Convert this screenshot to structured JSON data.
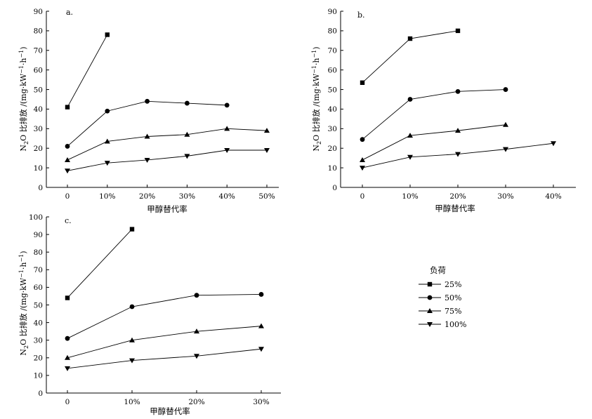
{
  "chart_data": [
    {
      "type": "line",
      "panel_label": "a.",
      "categories": [
        "0",
        "10%",
        "20%",
        "30%",
        "40%",
        "50%"
      ],
      "xlabel": "甲醇替代率",
      "ylabel": "N2O 比排放 /(mg·kW−1·h−1)",
      "ylim": [
        0,
        90
      ],
      "yticks": [
        "0",
        "10",
        "20",
        "30",
        "40",
        "50",
        "60",
        "70",
        "80",
        "90"
      ],
      "series": [
        {
          "name": "25%",
          "marker": "square",
          "values": [
            41,
            78,
            null,
            null,
            null,
            null
          ]
        },
        {
          "name": "50%",
          "marker": "circle",
          "values": [
            21,
            39,
            44,
            43,
            42,
            null
          ]
        },
        {
          "name": "75%",
          "marker": "triangle-up",
          "values": [
            14,
            23.5,
            26,
            27,
            30,
            29
          ]
        },
        {
          "name": "100%",
          "marker": "triangle-down",
          "values": [
            8.5,
            12.5,
            14,
            16,
            19,
            19
          ]
        }
      ]
    },
    {
      "type": "line",
      "panel_label": "b.",
      "categories": [
        "0",
        "10%",
        "20%",
        "30%",
        "40%"
      ],
      "xlabel": "甲醇替代率",
      "ylabel": "N2O 比排放 /(mg·kW−1·h−1)",
      "ylim": [
        0,
        90
      ],
      "yticks": [
        "0",
        "10",
        "20",
        "30",
        "40",
        "50",
        "60",
        "70",
        "80",
        "90"
      ],
      "series": [
        {
          "name": "25%",
          "marker": "square",
          "values": [
            53.5,
            76,
            80,
            null,
            null
          ]
        },
        {
          "name": "50%",
          "marker": "circle",
          "values": [
            24.5,
            45,
            49,
            50,
            null
          ]
        },
        {
          "name": "75%",
          "marker": "triangle-up",
          "values": [
            14,
            26.5,
            29,
            32,
            null
          ]
        },
        {
          "name": "100%",
          "marker": "triangle-down",
          "values": [
            10,
            15.5,
            17,
            19.5,
            22.5
          ]
        }
      ]
    },
    {
      "type": "line",
      "panel_label": "c.",
      "categories": [
        "0",
        "10%",
        "20%",
        "30%"
      ],
      "xlabel": "甲醇替代率",
      "ylabel": "N2O 比排放 /(mg·kW−1·h−1)",
      "ylim": [
        0,
        100
      ],
      "yticks": [
        "0",
        "10",
        "20",
        "30",
        "40",
        "50",
        "60",
        "70",
        "80",
        "90",
        "100"
      ],
      "series": [
        {
          "name": "25%",
          "marker": "square",
          "values": [
            54,
            93,
            null,
            null
          ]
        },
        {
          "name": "50%",
          "marker": "circle",
          "values": [
            31,
            49,
            55.5,
            56
          ]
        },
        {
          "name": "75%",
          "marker": "triangle-up",
          "values": [
            20,
            30,
            35,
            38
          ]
        },
        {
          "name": "100%",
          "marker": "triangle-down",
          "values": [
            14,
            18.5,
            21,
            25
          ]
        }
      ]
    }
  ],
  "legend": {
    "title": "负荷",
    "entries": [
      {
        "name": "25%",
        "marker": "square"
      },
      {
        "name": "50%",
        "marker": "circle"
      },
      {
        "name": "75%",
        "marker": "triangle-up"
      },
      {
        "name": "100%",
        "marker": "triangle-down"
      }
    ]
  }
}
